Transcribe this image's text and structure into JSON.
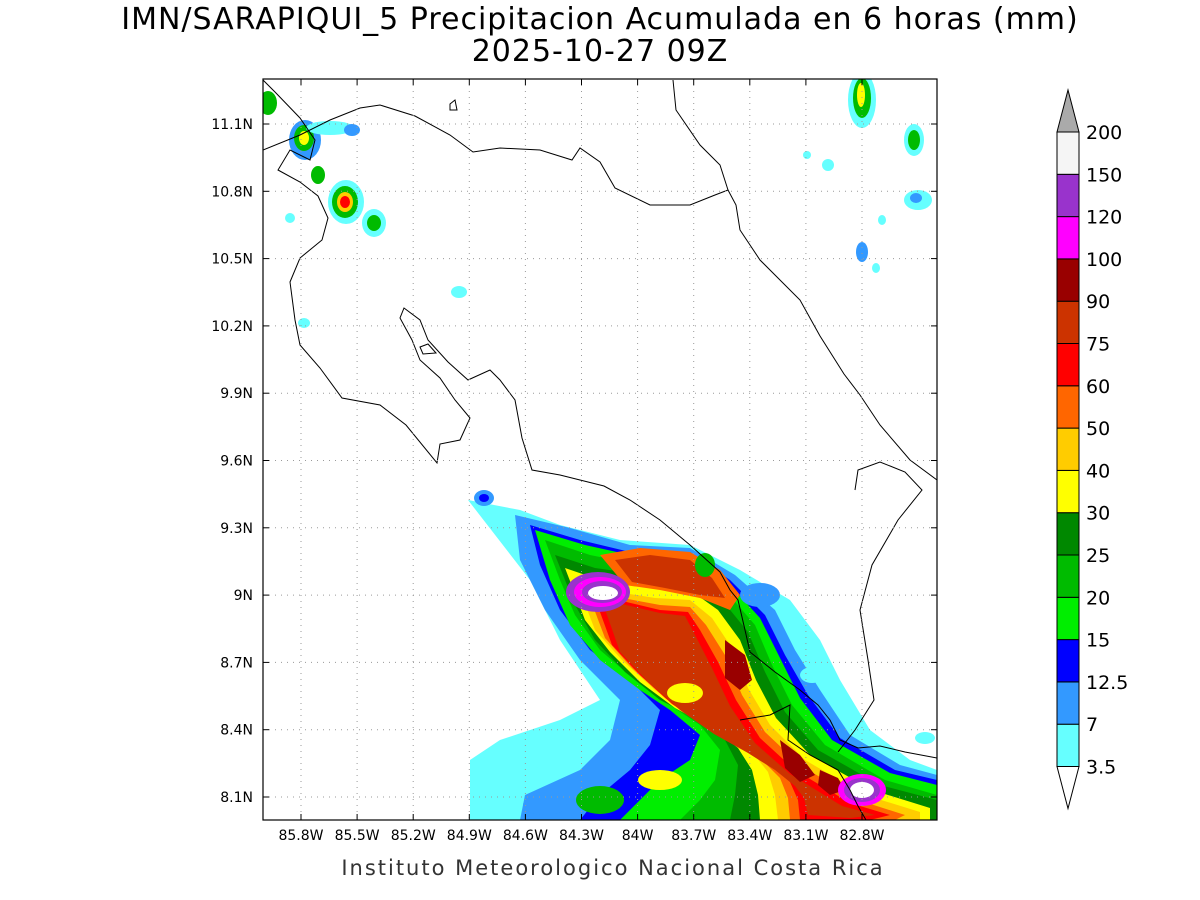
{
  "title": {
    "line1": "IMN/SARAPIQUI_5 Precipitacion Acumulada en 6 horas (mm)",
    "line2": "2025-10-27 09Z"
  },
  "footer": "Instituto Meteorologico Nacional Costa Rica",
  "map": {
    "lat_labels": [
      "11.1N",
      "10.8N",
      "10.5N",
      "10.2N",
      "9.9N",
      "9.6N",
      "9.3N",
      "9N",
      "8.7N",
      "8.4N",
      "8.1N"
    ],
    "lon_labels": [
      "85.8W",
      "85.5W",
      "85.2W",
      "84.9W",
      "84.6W",
      "84.3W",
      "84W",
      "83.7W",
      "83.4W",
      "83.1W",
      "82.8W"
    ],
    "lat_values": [
      11.1,
      10.8,
      10.5,
      10.2,
      9.9,
      9.6,
      9.3,
      9.0,
      8.7,
      8.4,
      8.1
    ],
    "lon_values": [
      -85.8,
      -85.5,
      -85.2,
      -84.9,
      -84.6,
      -84.3,
      -84.0,
      -83.7,
      -83.4,
      -83.1,
      -82.8
    ],
    "grid": true
  },
  "colorbar": {
    "levels": [
      "3.5",
      "7",
      "12.5",
      "15",
      "20",
      "25",
      "30",
      "40",
      "50",
      "60",
      "75",
      "90",
      "100",
      "120",
      "150",
      "200"
    ],
    "colors": [
      "#66ffff",
      "#3399ff",
      "#0000ff",
      "#00ee00",
      "#00bb00",
      "#008800",
      "#ffff00",
      "#ffcc00",
      "#ff6600",
      "#ff0000",
      "#cc3300",
      "#990000",
      "#ff00ff",
      "#9933cc",
      "#f5f5f5"
    ],
    "over_color": "#aaaaaa",
    "under_color": "#ffffff"
  }
}
